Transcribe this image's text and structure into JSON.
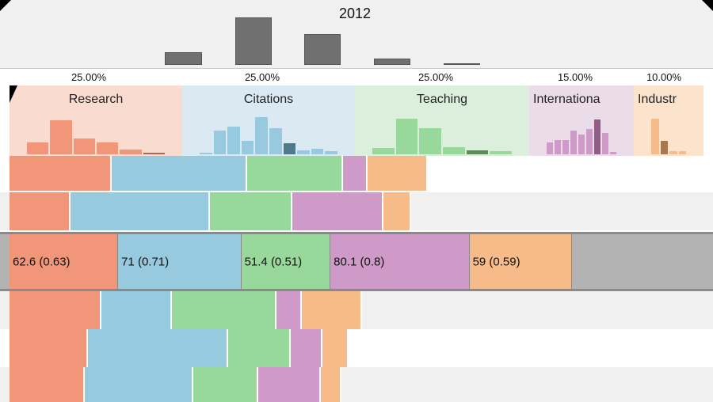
{
  "colors": {
    "research": "#f2967a",
    "citations": "#97cadf",
    "teaching": "#98d89a",
    "international": "#d09ac8",
    "industry": "#f6bb88",
    "research_hi": "#a86a55",
    "citations_hi": "#4f7a8c",
    "teaching_hi": "#5c8c5c",
    "international_hi": "#8f5d86",
    "industry_hi": "#a87850",
    "year_bar": "#707070"
  },
  "header": {
    "year": "2012",
    "year_hist": [
      0.23,
      0.85,
      0.55,
      0.12,
      0.03
    ]
  },
  "columns": [
    {
      "key": "research",
      "title": "Research",
      "weight": "25.00%",
      "hist": [
        0.25,
        0.72,
        0.33,
        0.25,
        0.1,
        0.04
      ],
      "hi_index": 5
    },
    {
      "key": "citations",
      "title": "Citations",
      "weight": "25.00%",
      "hist": [
        0.03,
        0.5,
        0.58,
        0.29,
        0.78,
        0.55,
        0.23,
        0.08,
        0.12,
        0.06
      ],
      "hi_index": 6
    },
    {
      "key": "teaching",
      "title": "Teaching",
      "weight": "25.00%",
      "hist": [
        0.14,
        0.75,
        0.55,
        0.15,
        0.08,
        0.06
      ],
      "hi_index": 4
    },
    {
      "key": "international",
      "title": "Internationa",
      "weight": "15.00%",
      "hist": [
        0.25,
        0.3,
        0.3,
        0.5,
        0.42,
        0.53,
        0.74,
        0.45,
        0.05
      ],
      "hi_index": 6
    },
    {
      "key": "industry",
      "title": "Industr",
      "weight": "10.00%",
      "hist": [
        0.75,
        0.28,
        0.06,
        0.06
      ],
      "hi_index": 1
    }
  ],
  "rows": [
    {
      "selected": false,
      "values": [
        58.8,
        78.3,
        55.2,
        14.0,
        34.6
      ],
      "labels": []
    },
    {
      "selected": false,
      "values": [
        35.0,
        80.6,
        47.3,
        52.5,
        16.0
      ],
      "labels": []
    },
    {
      "selected": true,
      "values": [
        62.6,
        71.0,
        51.4,
        80.1,
        59.0
      ],
      "labels": [
        "62.6 (0.63)",
        "71 (0.71)",
        "51.4 (0.51)",
        "80.1 (0.8)",
        "59 (0.59)"
      ]
    },
    {
      "selected": false,
      "values": [
        53.0,
        40.6,
        60.3,
        14.7,
        34.4
      ],
      "labels": []
    },
    {
      "selected": false,
      "values": [
        45.3,
        80.6,
        36.4,
        18.0,
        15.2
      ],
      "labels": []
    },
    {
      "selected": false,
      "values": [
        43.5,
        62.3,
        37.4,
        36.4,
        11.8
      ],
      "labels": []
    }
  ]
}
